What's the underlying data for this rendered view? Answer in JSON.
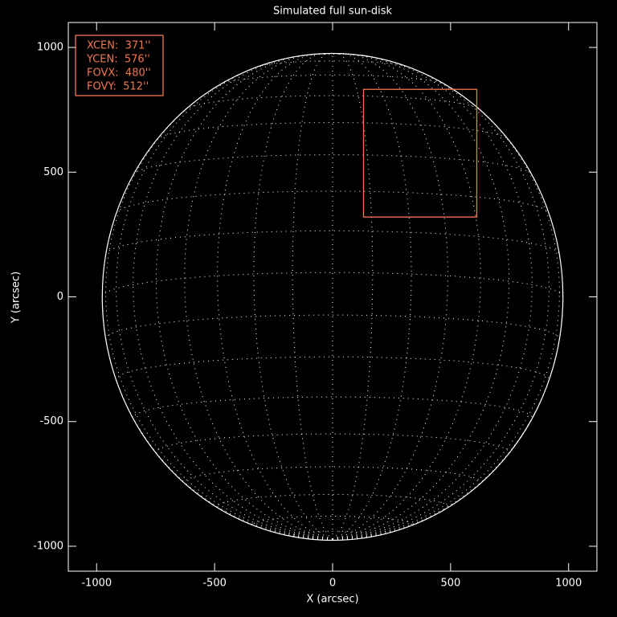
{
  "chart_data": {
    "type": "sun-disk",
    "title": "Simulated full sun-disk",
    "x_label": "X (arcsec)",
    "y_label": "Y (arcsec)",
    "xlim": [
      -1120,
      1120
    ],
    "ylim": [
      -1100,
      1100
    ],
    "xticks": [
      -1000,
      -500,
      0,
      500,
      1000
    ],
    "yticks": [
      -1000,
      -500,
      0,
      500,
      1000
    ],
    "radius": 976,
    "grid": true,
    "color": "#ffffff",
    "box_color": "#f07850",
    "annotations": [
      {
        "label": "XCEN:  371''",
        "value": 371
      },
      {
        "label": "YCEN:  576''",
        "value": 576
      },
      {
        "label": "FOVX:  480''",
        "value": 480
      },
      {
        "label": "FOVY:  512''",
        "value": 512
      }
    ]
  }
}
